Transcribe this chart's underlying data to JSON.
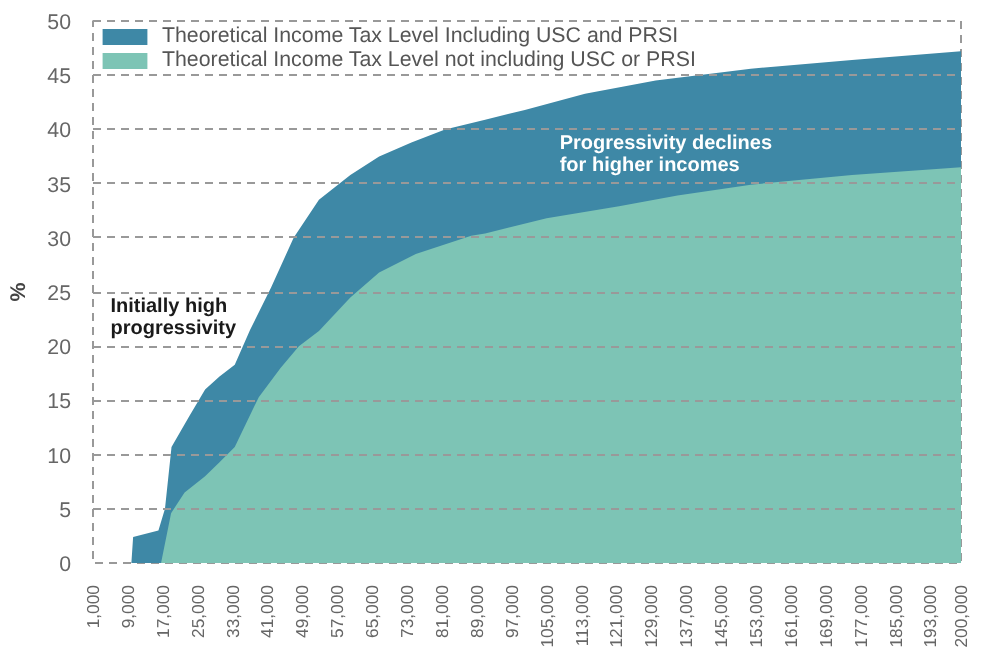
{
  "chart_data": {
    "type": "area",
    "ylabel": "%",
    "xlim": [
      1000,
      200000
    ],
    "ylim": [
      0,
      50
    ],
    "yticks": [
      0,
      5,
      10,
      15,
      20,
      25,
      30,
      35,
      40,
      45,
      50
    ],
    "xticks": [
      {
        "value": 1000,
        "label": "1,000"
      },
      {
        "value": 9000,
        "label": "9,000"
      },
      {
        "value": 17000,
        "label": "17,000"
      },
      {
        "value": 25000,
        "label": "25,000"
      },
      {
        "value": 33000,
        "label": "33,000"
      },
      {
        "value": 41000,
        "label": "41,000"
      },
      {
        "value": 49000,
        "label": "49,000"
      },
      {
        "value": 57000,
        "label": "57,000"
      },
      {
        "value": 65000,
        "label": "65,000"
      },
      {
        "value": 73000,
        "label": "73,000"
      },
      {
        "value": 81000,
        "label": "81,000"
      },
      {
        "value": 89000,
        "label": "89,000"
      },
      {
        "value": 97000,
        "label": "97,000"
      },
      {
        "value": 105000,
        "label": "105,000"
      },
      {
        "value": 113000,
        "label": "113,000"
      },
      {
        "value": 121000,
        "label": "121,000"
      },
      {
        "value": 129000,
        "label": "129,000"
      },
      {
        "value": 137000,
        "label": "137,000"
      },
      {
        "value": 145000,
        "label": "145,000"
      },
      {
        "value": 153000,
        "label": "153,000"
      },
      {
        "value": 161000,
        "label": "161,000"
      },
      {
        "value": 169000,
        "label": "169,000"
      },
      {
        "value": 177000,
        "label": "177,000"
      },
      {
        "value": 185000,
        "label": "185,000"
      },
      {
        "value": 193000,
        "label": "193,000"
      },
      {
        "value": 200000,
        "label": "200,000"
      }
    ],
    "series": [
      {
        "name": "Theoretical Income Tax Level Including USC and PRSI",
        "color": "#3e88a6",
        "x": [
          1000,
          9800,
          10200,
          16000,
          17500,
          19000,
          23000,
          26700,
          30000,
          33500,
          37000,
          41800,
          47000,
          52800,
          60000,
          66600,
          74000,
          81700,
          90900,
          100000,
          113800,
          130000,
          151800,
          175000,
          200000
        ],
        "values": [
          0,
          0,
          2.4,
          3,
          5,
          10.7,
          13.5,
          16,
          17.2,
          18.3,
          21.5,
          25.4,
          30,
          33.5,
          35.8,
          37.5,
          38.8,
          40,
          40.9,
          41.8,
          43.3,
          44.5,
          45.6,
          46.4,
          47.2
        ]
      },
      {
        "name": "Theoretical Income Tax Level not including USC or PRSI",
        "color": "#7dc4b5",
        "x": [
          1000,
          16600,
          18900,
          22000,
          26700,
          30000,
          33500,
          39000,
          44000,
          48200,
          52800,
          60000,
          66600,
          75000,
          87700,
          90900,
          105000,
          121600,
          135000,
          151800,
          175000,
          200000
        ],
        "values": [
          0,
          0,
          4.6,
          6.5,
          8,
          9.3,
          10.7,
          15.3,
          18,
          20,
          21.4,
          24.5,
          26.8,
          28.5,
          30.2,
          30.4,
          31.8,
          32.9,
          33.9,
          34.9,
          35.8,
          36.5
        ]
      }
    ],
    "grid": "y",
    "line_style": "dashed",
    "legend": "top left",
    "annotations": [
      "Initially high progressivity",
      "Progressivity declines for higher incomes"
    ]
  }
}
